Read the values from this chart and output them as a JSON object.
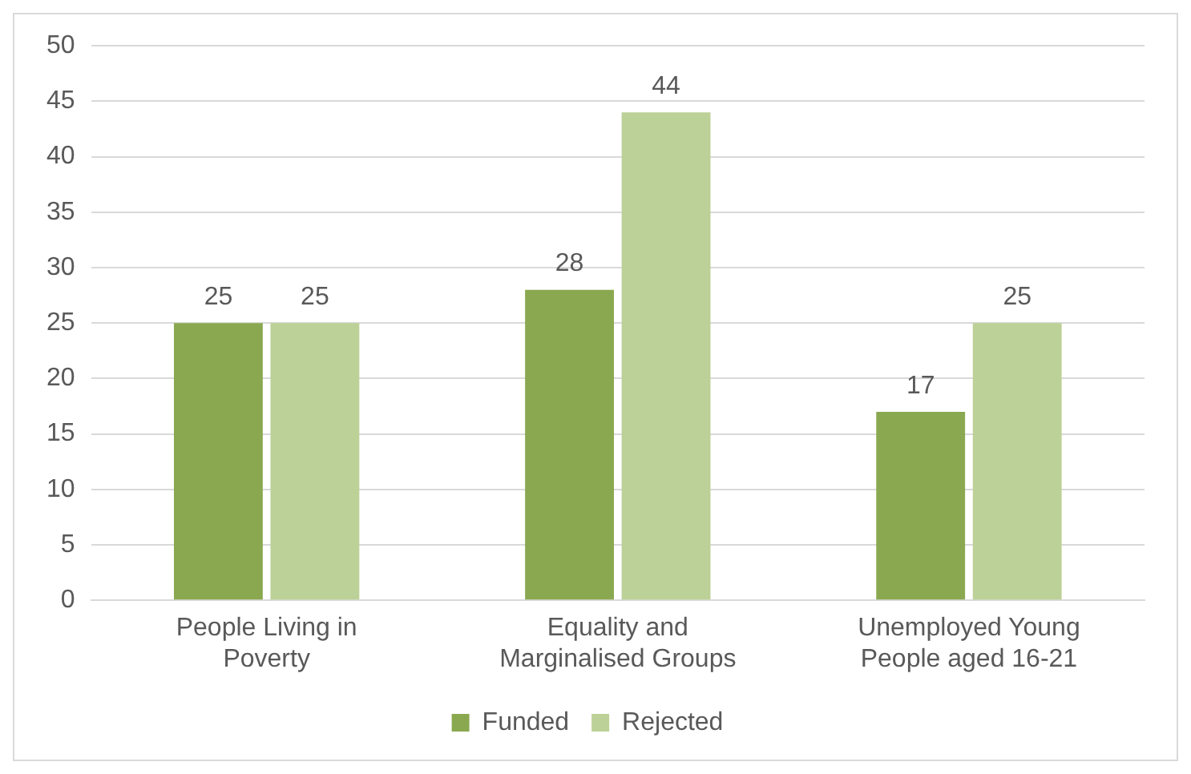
{
  "chart_data": {
    "type": "bar",
    "categories": [
      "People Living in Poverty",
      "Equality and Marginalised Groups",
      "Unemployed Young People aged 16-21"
    ],
    "series": [
      {
        "name": "Funded",
        "color": "#8aa84f",
        "values": [
          25,
          28,
          17
        ]
      },
      {
        "name": "Rejected",
        "color": "#bcd197",
        "values": [
          25,
          44,
          25
        ]
      }
    ],
    "ylim": [
      0,
      50
    ],
    "yticks": [
      0,
      5,
      10,
      15,
      20,
      25,
      30,
      35,
      40,
      45,
      50
    ],
    "grid": "y",
    "legend": "bottom",
    "data_labels": true
  }
}
